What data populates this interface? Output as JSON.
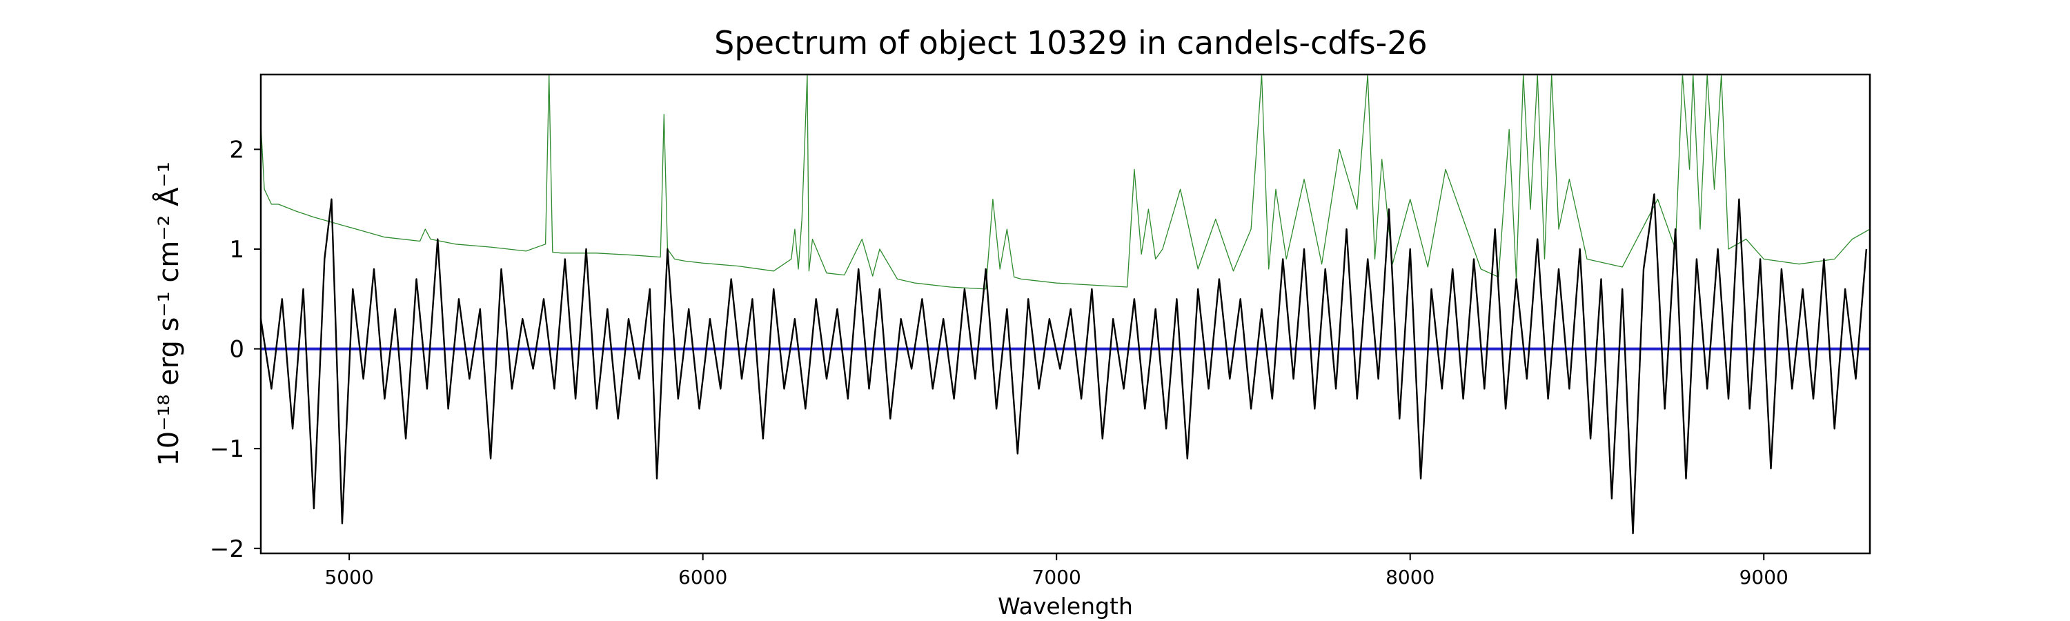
{
  "chart_data": {
    "type": "line",
    "title": "Spectrum of object 10329 in candels-cdfs-26",
    "xlabel": "Wavelength",
    "ylabel": "10⁻¹⁸ erg s⁻¹ cm⁻² Å⁻¹",
    "xlim": [
      4750,
      9300
    ],
    "ylim": [
      -2.05,
      2.75
    ],
    "x_ticks": [
      5000,
      6000,
      7000,
      8000,
      9000
    ],
    "y_ticks": [
      -2,
      -1,
      0,
      1,
      2
    ],
    "y_tick_labels": [
      "−2",
      "−1",
      "0",
      "1",
      "2"
    ],
    "grid": false,
    "series": [
      {
        "role": "flux",
        "color": "#000000",
        "x": [
          4750,
          4780,
          4810,
          4840,
          4870,
          4900,
          4930,
          4950,
          4980,
          5010,
          5040,
          5070,
          5100,
          5130,
          5160,
          5190,
          5220,
          5250,
          5280,
          5310,
          5340,
          5370,
          5400,
          5430,
          5460,
          5490,
          5520,
          5550,
          5580,
          5610,
          5640,
          5670,
          5700,
          5730,
          5760,
          5790,
          5820,
          5850,
          5870,
          5900,
          5930,
          5960,
          5990,
          6020,
          6050,
          6080,
          6110,
          6140,
          6170,
          6200,
          6230,
          6260,
          6290,
          6320,
          6350,
          6380,
          6410,
          6440,
          6470,
          6500,
          6530,
          6560,
          6590,
          6620,
          6650,
          6680,
          6710,
          6740,
          6770,
          6800,
          6830,
          6860,
          6890,
          6920,
          6950,
          6980,
          7010,
          7040,
          7070,
          7100,
          7130,
          7160,
          7190,
          7220,
          7250,
          7280,
          7310,
          7340,
          7370,
          7400,
          7430,
          7460,
          7490,
          7520,
          7550,
          7580,
          7610,
          7640,
          7670,
          7700,
          7730,
          7760,
          7790,
          7820,
          7850,
          7880,
          7910,
          7940,
          7970,
          8000,
          8030,
          8060,
          8090,
          8120,
          8150,
          8180,
          8210,
          8240,
          8270,
          8300,
          8330,
          8360,
          8390,
          8420,
          8450,
          8480,
          8510,
          8540,
          8570,
          8600,
          8630,
          8660,
          8690,
          8720,
          8750,
          8780,
          8810,
          8840,
          8870,
          8900,
          8930,
          8960,
          8990,
          9020,
          9050,
          9080,
          9110,
          9140,
          9170,
          9200,
          9230,
          9260,
          9290
        ],
        "y": [
          0.3,
          -0.4,
          0.5,
          -0.8,
          0.6,
          -1.6,
          0.9,
          1.5,
          -1.75,
          0.6,
          -0.3,
          0.8,
          -0.5,
          0.4,
          -0.9,
          0.7,
          -0.4,
          1.1,
          -0.6,
          0.5,
          -0.3,
          0.4,
          -1.1,
          0.8,
          -0.4,
          0.3,
          -0.2,
          0.5,
          -0.4,
          0.9,
          -0.5,
          1.0,
          -0.6,
          0.4,
          -0.7,
          0.3,
          -0.3,
          0.6,
          -1.3,
          1.0,
          -0.5,
          0.4,
          -0.6,
          0.3,
          -0.4,
          0.7,
          -0.3,
          0.5,
          -0.9,
          0.6,
          -0.4,
          0.3,
          -0.6,
          0.5,
          -0.3,
          0.4,
          -0.5,
          0.8,
          -0.4,
          0.6,
          -0.7,
          0.3,
          -0.2,
          0.5,
          -0.4,
          0.3,
          -0.5,
          0.6,
          -0.3,
          0.8,
          -0.6,
          0.4,
          -1.05,
          0.5,
          -0.4,
          0.3,
          -0.2,
          0.4,
          -0.5,
          0.6,
          -0.9,
          0.3,
          -0.4,
          0.5,
          -0.6,
          0.4,
          -0.8,
          0.5,
          -1.1,
          0.6,
          -0.4,
          0.7,
          -0.3,
          0.5,
          -0.6,
          0.4,
          -0.5,
          0.9,
          -0.3,
          1.0,
          -0.6,
          0.8,
          -0.4,
          1.2,
          -0.5,
          0.9,
          -0.3,
          1.4,
          -0.7,
          1.0,
          -1.3,
          0.6,
          -0.4,
          0.8,
          -0.5,
          0.9,
          -0.4,
          1.2,
          -0.6,
          0.7,
          -0.3,
          1.1,
          -0.5,
          0.8,
          -0.4,
          1.0,
          -0.9,
          0.7,
          -1.5,
          0.6,
          -1.85,
          0.8,
          1.55,
          -0.6,
          1.2,
          -1.3,
          0.9,
          -0.4,
          1.0,
          -0.5,
          1.5,
          -0.6,
          0.9,
          -1.2,
          0.8,
          -0.4,
          0.6,
          -0.5,
          0.9,
          -0.8,
          0.6,
          -0.3,
          1.0
        ],
        "lineWidth": 2.4
      },
      {
        "role": "error",
        "color": "#2e8b2e",
        "x": [
          4750,
          4760,
          4780,
          4800,
          4850,
          4900,
          5000,
          5100,
          5200,
          5215,
          5230,
          5300,
          5400,
          5500,
          5555,
          5565,
          5575,
          5600,
          5700,
          5800,
          5880,
          5890,
          5900,
          5920,
          5950,
          6000,
          6100,
          6200,
          6250,
          6260,
          6270,
          6280,
          6295,
          6300,
          6310,
          6350,
          6400,
          6450,
          6480,
          6500,
          6550,
          6600,
          6700,
          6800,
          6820,
          6840,
          6860,
          6880,
          6900,
          6950,
          7000,
          7100,
          7200,
          7220,
          7240,
          7260,
          7280,
          7300,
          7350,
          7400,
          7450,
          7500,
          7550,
          7580,
          7600,
          7620,
          7650,
          7700,
          7750,
          7800,
          7850,
          7880,
          7900,
          7920,
          7950,
          8000,
          8050,
          8100,
          8150,
          8200,
          8250,
          8280,
          8300,
          8320,
          8340,
          8360,
          8380,
          8400,
          8420,
          8450,
          8500,
          8600,
          8700,
          8750,
          8770,
          8790,
          8800,
          8820,
          8840,
          8860,
          8880,
          8900,
          8950,
          9000,
          9100,
          9200,
          9250,
          9300
        ],
        "y": [
          2.25,
          1.6,
          1.45,
          1.45,
          1.38,
          1.32,
          1.22,
          1.12,
          1.08,
          1.2,
          1.1,
          1.05,
          1.02,
          0.98,
          1.05,
          2.75,
          0.97,
          0.96,
          0.96,
          0.94,
          0.92,
          2.35,
          1.0,
          0.9,
          0.88,
          0.86,
          0.83,
          0.78,
          0.9,
          1.2,
          0.8,
          1.3,
          2.75,
          0.78,
          1.1,
          0.76,
          0.74,
          1.1,
          0.73,
          1.0,
          0.7,
          0.66,
          0.62,
          0.6,
          1.5,
          0.8,
          1.2,
          0.72,
          0.7,
          0.68,
          0.66,
          0.64,
          0.62,
          1.8,
          0.95,
          1.4,
          0.9,
          1.0,
          1.6,
          0.8,
          1.3,
          0.78,
          1.2,
          2.75,
          0.8,
          1.6,
          0.9,
          1.7,
          0.85,
          2.0,
          1.4,
          2.75,
          0.9,
          1.9,
          0.85,
          1.5,
          0.82,
          1.8,
          1.3,
          0.8,
          0.72,
          2.2,
          0.7,
          2.75,
          1.4,
          2.75,
          0.9,
          2.75,
          1.2,
          1.7,
          0.9,
          0.82,
          1.5,
          1.0,
          2.75,
          1.8,
          2.75,
          1.2,
          2.75,
          1.6,
          2.75,
          1.0,
          1.1,
          0.9,
          0.85,
          0.9,
          1.1,
          1.2
        ],
        "lineWidth": 1.3
      },
      {
        "role": "zero",
        "color": "#1f1fcc",
        "x": [
          4750,
          9300
        ],
        "y": [
          0,
          0
        ],
        "lineWidth": 4
      }
    ]
  }
}
